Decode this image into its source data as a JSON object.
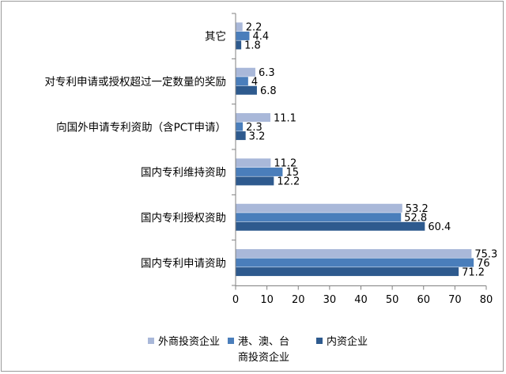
{
  "chart_data": {
    "type": "bar",
    "orientation": "horizontal",
    "categories": [
      "其它",
      "对专利申请或授权超过一定数量的奖励",
      "向国外申请专利资助（含PCT申请）",
      "国内专利维持资助",
      "国内专利授权资助",
      "国内专利申请资助"
    ],
    "series": [
      {
        "name": "外商投资企业",
        "color": "#a9b8d9",
        "values": [
          2.2,
          6.3,
          11.1,
          11.2,
          53.2,
          75.3
        ],
        "labels": [
          "2.2",
          "6.3",
          "11.1",
          "11.2",
          "53.2",
          "75.3"
        ]
      },
      {
        "name": "港、澳、台商投资企业",
        "color": "#4a7ebb",
        "values": [
          4.4,
          4,
          2.3,
          15,
          52.8,
          76
        ],
        "labels": [
          "4.4",
          "4",
          "2.3",
          "15",
          "52.8",
          "76"
        ]
      },
      {
        "name": "内资企业",
        "color": "#2e5a8e",
        "values": [
          1.8,
          6.8,
          3.2,
          12.2,
          60.4,
          71.2
        ],
        "labels": [
          "1.8",
          "6.8",
          "3.2",
          "12.2",
          "60.4",
          "71.2"
        ]
      }
    ],
    "legend": {
      "placement": "bottom",
      "entries": [
        "外商投资企业",
        "港、澳、台",
        "商投资企业",
        "内资企业"
      ]
    },
    "xlim": [
      0,
      80
    ],
    "xticks": [
      "0",
      "10",
      "20",
      "30",
      "40",
      "50",
      "60",
      "70",
      "80"
    ],
    "grid": false
  }
}
